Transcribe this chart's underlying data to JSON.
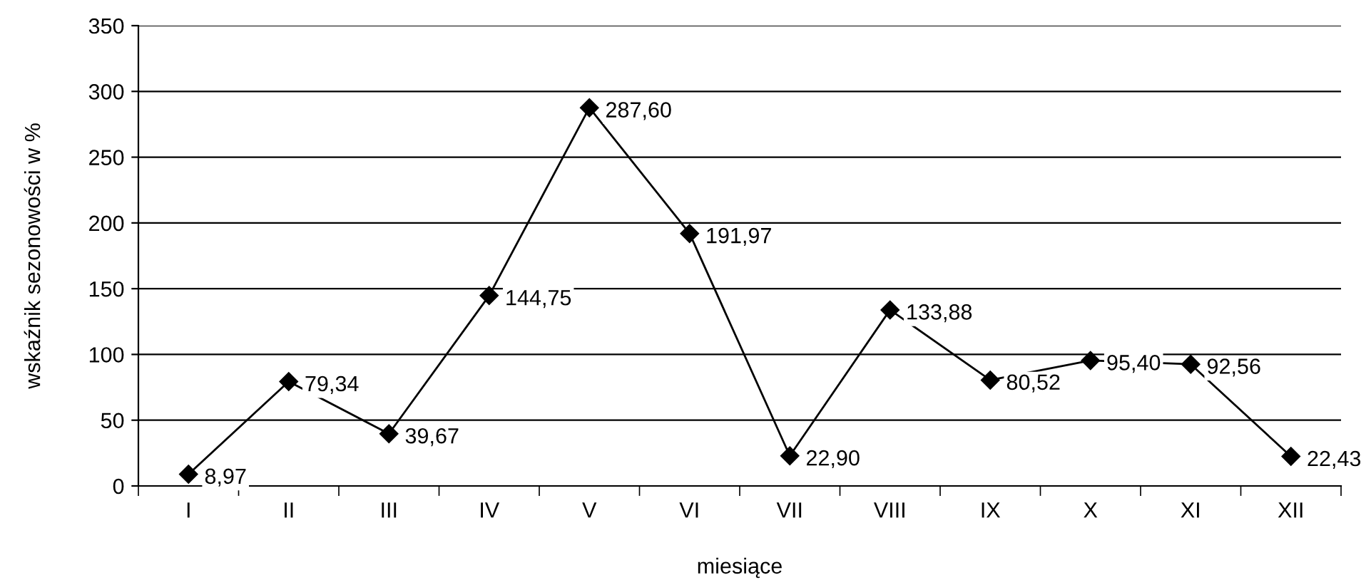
{
  "chart_data": {
    "type": "line",
    "xlabel": "miesiące",
    "ylabel": "wskaźnik sezonowości w %",
    "categories": [
      "I",
      "II",
      "III",
      "IV",
      "V",
      "VI",
      "VII",
      "VIII",
      "IX",
      "X",
      "XI",
      "XII"
    ],
    "series": [
      {
        "color": "#000000",
        "values": [
          8.97,
          79.34,
          39.67,
          144.75,
          287.6,
          191.97,
          22.9,
          133.88,
          80.52,
          95.4,
          92.56,
          22.43
        ],
        "value_labels": [
          "8,97",
          "79,34",
          "39,67",
          "144,75",
          "287,60",
          "191,97",
          "22,90",
          "133,88",
          "80,52",
          "95,40",
          "92,56",
          "22,43"
        ]
      }
    ],
    "ylim": [
      0,
      350
    ],
    "yticks": [
      0,
      50,
      100,
      150,
      200,
      250,
      300,
      350
    ],
    "grid": "y",
    "marker": "diamond",
    "line_style": "solid",
    "legend": false
  }
}
